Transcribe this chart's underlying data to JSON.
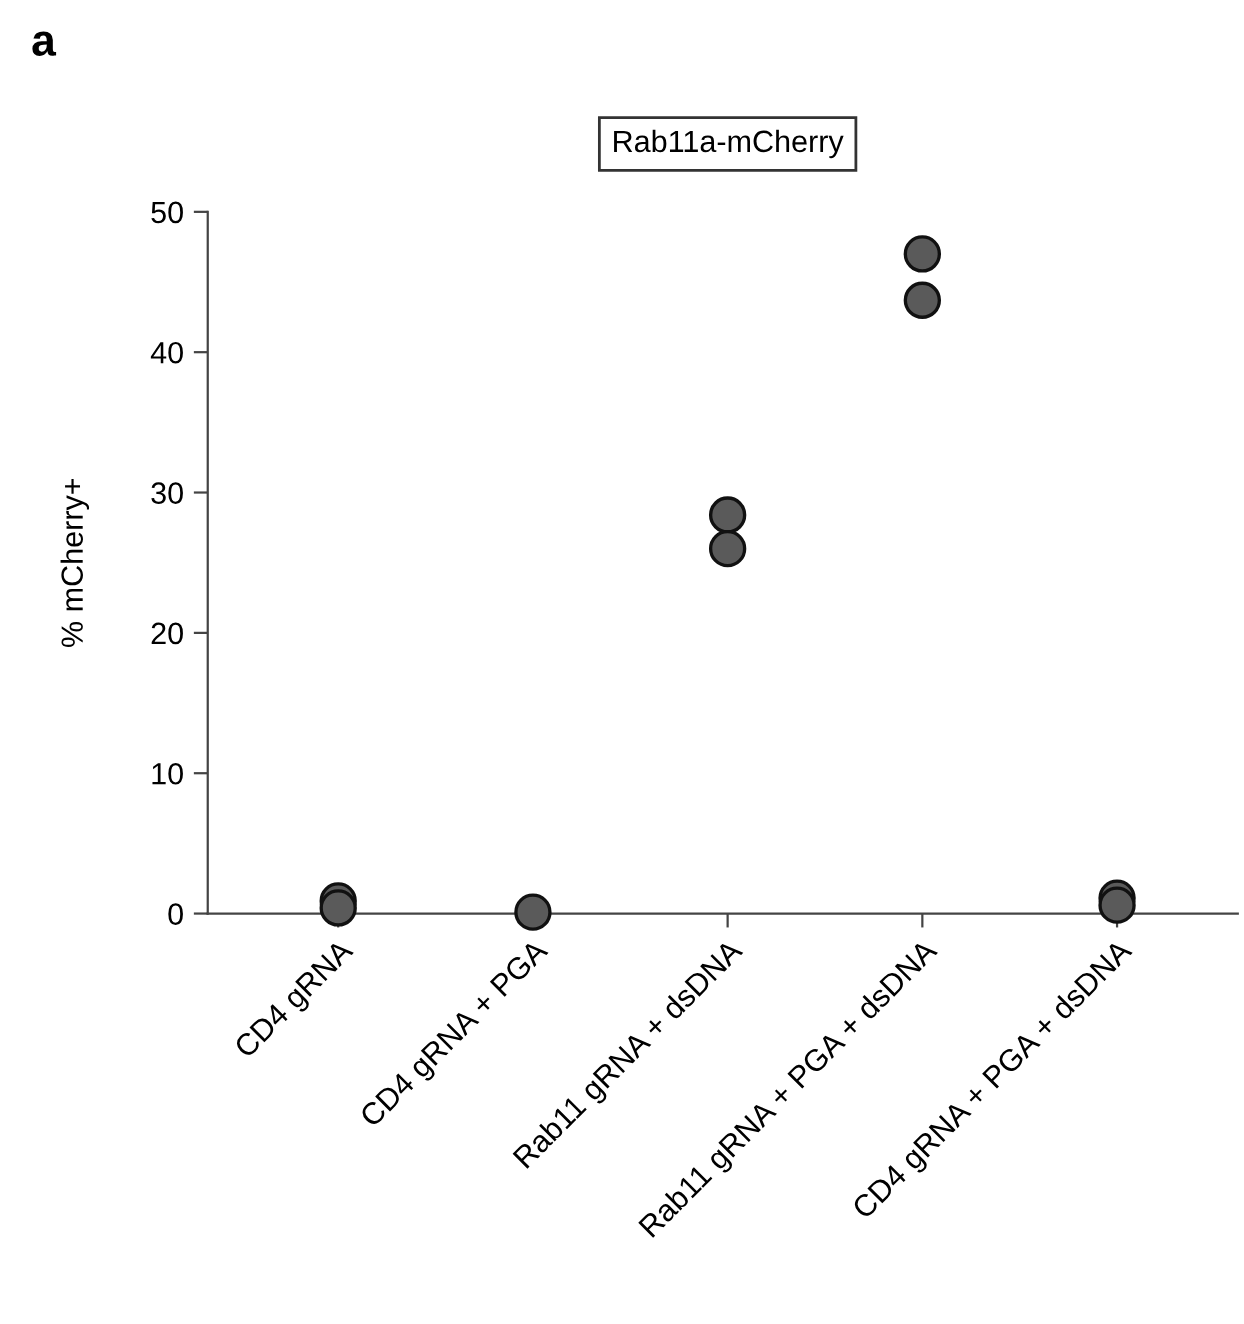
{
  "chart_data": {
    "type": "scatter",
    "title": "Rab11a-mCherry",
    "ylabel": "% mCherry+",
    "categories": [
      "CD4 gRNA",
      "CD4 gRNA + PGA",
      "Rab11 gRNA + dsDNA",
      "Rab11 gRNA + PGA + dsDNA",
      "CD4 gRNA + PGA + dsDNA"
    ],
    "series": [
      {
        "color": "#5a5a5a",
        "x": [
          "CD4 gRNA",
          "CD4 gRNA",
          "CD4 gRNA + PGA",
          "CD4 gRNA + PGA",
          "Rab11 gRNA + dsDNA",
          "Rab11 gRNA + dsDNA",
          "Rab11 gRNA + PGA + dsDNA",
          "Rab11 gRNA + PGA + dsDNA",
          "CD4 gRNA + PGA + dsDNA",
          "CD4 gRNA + PGA + dsDNA"
        ],
        "values": [
          0.9,
          0.4,
          0.1,
          null,
          28.4,
          26.0,
          47.0,
          43.7,
          1.1,
          0.6
        ]
      }
    ],
    "ylim": [
      0,
      50
    ],
    "yticks": [
      0,
      10,
      20,
      30,
      40,
      50
    ],
    "marker": "circle",
    "grid": false,
    "legend": false,
    "annotations": [
      "a"
    ]
  }
}
